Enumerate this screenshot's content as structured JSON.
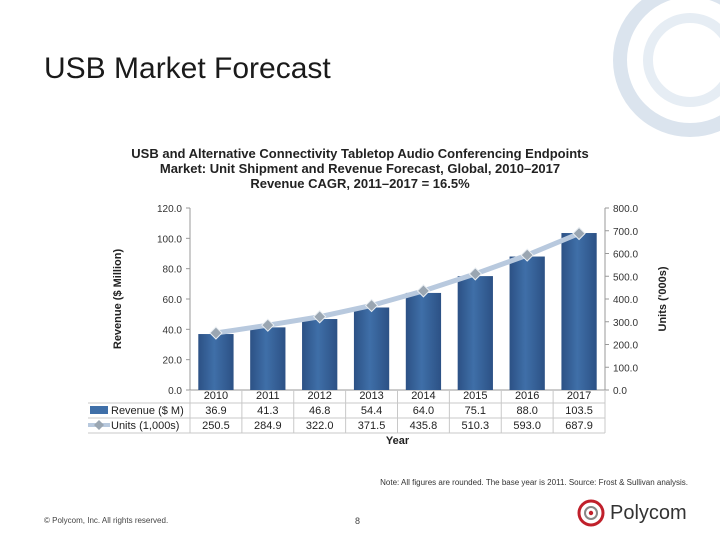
{
  "slide": {
    "title": "USB Market Forecast",
    "note": "Note: All figures are rounded. The base year is 2011. Source: Frost & Sullivan analysis.",
    "copyright": "© Polycom, Inc. All rights reserved.",
    "page_number": "8",
    "logo_text": "Polycom"
  },
  "colors": {
    "bar": "#3f6fa8",
    "bar_dark": "#2c5185",
    "line": "#b8c9de",
    "marker": "#9aa6b2",
    "deco": "#dbe4ee"
  },
  "chart_data": {
    "type": "bar",
    "title_lines": [
      "USB and Alternative Connectivity Tabletop Audio Conferencing Endpoints",
      "Market: Unit Shipment and Revenue Forecast, Global, 2010–2017",
      "Revenue CAGR, 2011–2017 = 16.5%"
    ],
    "categories": [
      "2010",
      "2011",
      "2012",
      "2013",
      "2014",
      "2015",
      "2016",
      "2017"
    ],
    "xlabel": "Year",
    "ylabel": "Revenue ($ Million)",
    "y2label": "Units ('000s)",
    "ylim": [
      0,
      120
    ],
    "y2lim": [
      0,
      800
    ],
    "yticks": [
      "0.0",
      "20.0",
      "40.0",
      "60.0",
      "80.0",
      "100.0",
      "120.0"
    ],
    "y2ticks": [
      "0.0",
      "100.0",
      "200.0",
      "300.0",
      "400.0",
      "500.0",
      "600.0",
      "700.0",
      "800.0"
    ],
    "series": [
      {
        "name": "Revenue ($ M)",
        "type": "bar",
        "axis": "left",
        "values": [
          36.9,
          41.3,
          46.8,
          54.4,
          64.0,
          75.1,
          88.0,
          103.5
        ],
        "labels": [
          "36.9",
          "41.3",
          "46.8",
          "54.4",
          "64.0",
          "75.1",
          "88.0",
          "103.5"
        ]
      },
      {
        "name": "Units (1,000s)",
        "type": "line",
        "axis": "right",
        "values": [
          250.5,
          284.9,
          322.0,
          371.5,
          435.8,
          510.3,
          593.0,
          687.9
        ],
        "labels": [
          "250.5",
          "284.9",
          "322.0",
          "371.5",
          "435.8",
          "510.3",
          "593.0",
          "687.9"
        ]
      }
    ]
  }
}
